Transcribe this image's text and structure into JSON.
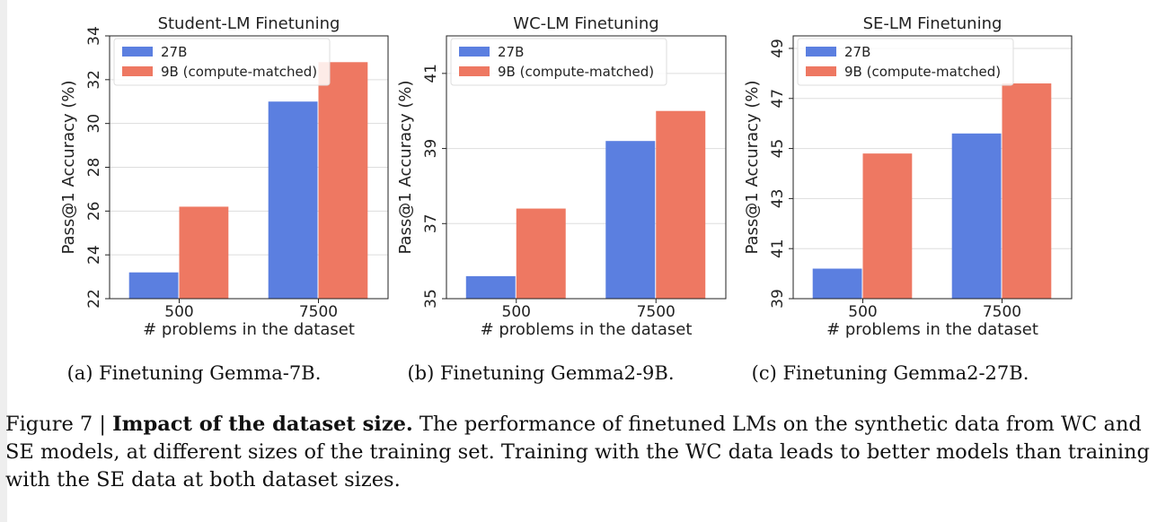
{
  "figure": {
    "label": "Figure 7 |",
    "bold": "Impact of the dataset size.",
    "text": "The performance of finetuned LMs on the synthetic data from WC and SE models, at different sizes of the training set. Training with the WC data leads to better models than training with the SE data at both dataset sizes."
  },
  "colors": {
    "series_27b": "#5b7fe0",
    "series_9b": "#ee7862",
    "grid": "#dddddd",
    "axis": "#222222"
  },
  "chart_data": [
    {
      "type": "bar",
      "title": "Student-LM Finetuning",
      "caption": "(a) Finetuning Gemma-7B.",
      "xlabel": "# problems in the dataset",
      "ylabel": "Pass@1 Accuracy (%)",
      "categories": [
        "500",
        "7500"
      ],
      "ylim": [
        22,
        34
      ],
      "yticks": [
        22,
        24,
        26,
        28,
        30,
        32,
        34
      ],
      "legend_position": "top-left",
      "grid": true,
      "series": [
        {
          "name": "27B",
          "values": [
            23.2,
            31.0
          ]
        },
        {
          "name": "9B (compute-matched)",
          "values": [
            26.2,
            32.8
          ]
        }
      ]
    },
    {
      "type": "bar",
      "title": "WC-LM Finetuning",
      "caption": "(b) Finetuning Gemma2-9B.",
      "xlabel": "# problems in the dataset",
      "ylabel": "Pass@1 Accuracy (%)",
      "categories": [
        "500",
        "7500"
      ],
      "ylim": [
        35,
        42
      ],
      "yticks": [
        35,
        37,
        39,
        41
      ],
      "legend_position": "top-left",
      "grid": true,
      "series": [
        {
          "name": "27B",
          "values": [
            35.6,
            39.2
          ]
        },
        {
          "name": "9B (compute-matched)",
          "values": [
            37.4,
            40.0
          ]
        }
      ]
    },
    {
      "type": "bar",
      "title": "SE-LM Finetuning",
      "caption": "(c) Finetuning Gemma2-27B.",
      "xlabel": "# problems in the dataset",
      "ylabel": "Pass@1 Accuracy (%)",
      "categories": [
        "500",
        "7500"
      ],
      "ylim": [
        39,
        49.5
      ],
      "yticks": [
        39,
        41,
        43,
        45,
        47,
        49
      ],
      "legend_position": "top-left",
      "grid": true,
      "series": [
        {
          "name": "27B",
          "values": [
            40.2,
            45.6
          ]
        },
        {
          "name": "9B (compute-matched)",
          "values": [
            44.8,
            47.6
          ]
        }
      ]
    }
  ]
}
